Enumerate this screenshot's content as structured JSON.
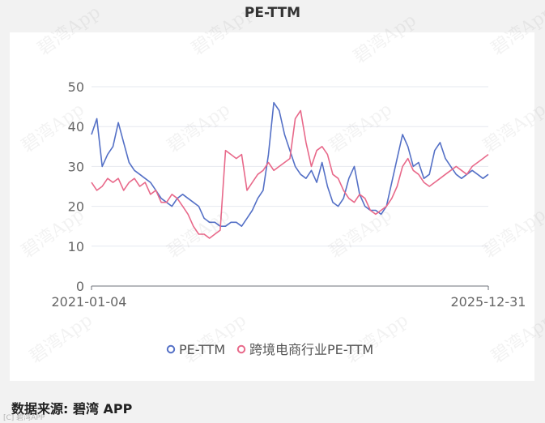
{
  "chart_data": {
    "type": "line",
    "title": "PE-TTM",
    "x_start": "2021-01-04",
    "x_end": "2025-12-31",
    "x_tick_labels": [
      "2021-01-04",
      "2025-12-31"
    ],
    "ylim": [
      0,
      50
    ],
    "y_ticks": [
      "0",
      "10",
      "20",
      "30",
      "40",
      "50"
    ],
    "grid": "horizontal",
    "legend_position": "bottom",
    "series": [
      {
        "name": "PE-TTM",
        "color": "#5470c6",
        "values": [
          38,
          42,
          30,
          33,
          35,
          41,
          36,
          31,
          29,
          28,
          27,
          26,
          24,
          22,
          21,
          20,
          22,
          23,
          22,
          21,
          20,
          17,
          16,
          16,
          15,
          15,
          16,
          16,
          15,
          17,
          19,
          22,
          24,
          33,
          46,
          44,
          38,
          34,
          30,
          28,
          27,
          29,
          26,
          31,
          25,
          21,
          20,
          22,
          27,
          30,
          23,
          20,
          19,
          19,
          18,
          20,
          26,
          32,
          38,
          35,
          30,
          31,
          27,
          28,
          34,
          36,
          32,
          30,
          28,
          27,
          28,
          29,
          28,
          27,
          28
        ]
      },
      {
        "name": "跨境电商行业PE-TTM",
        "color": "#e8698a",
        "values": [
          26,
          24,
          25,
          27,
          26,
          27,
          24,
          26,
          27,
          25,
          26,
          23,
          24,
          21,
          21,
          23,
          22,
          20,
          18,
          15,
          13,
          13,
          12,
          13,
          14,
          34,
          33,
          32,
          33,
          24,
          26,
          28,
          29,
          31,
          29,
          30,
          31,
          32,
          42,
          44,
          36,
          30,
          34,
          35,
          33,
          28,
          27,
          24,
          22,
          21,
          23,
          22,
          19,
          18,
          19,
          20,
          22,
          25,
          30,
          32,
          29,
          28,
          26,
          25,
          26,
          27,
          28,
          29,
          30,
          29,
          28,
          30,
          31,
          32,
          33
        ]
      }
    ]
  },
  "footer": {
    "source_text": "数据来源: 碧湾 APP",
    "corner_text": "[C] 碧湾APP"
  },
  "watermark_text": "碧湾App"
}
